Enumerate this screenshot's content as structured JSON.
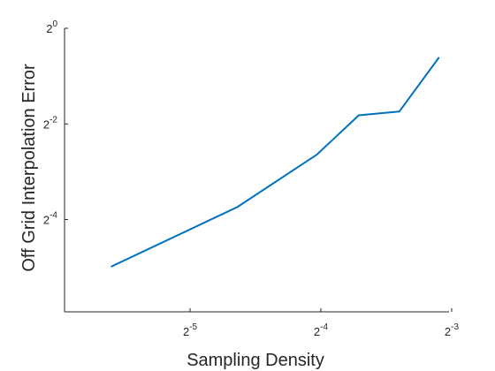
{
  "chart_data": {
    "type": "line",
    "title": "",
    "xlabel": "Sampling Density",
    "ylabel": "Off Grid Interpolation Error",
    "x_scale": "log2",
    "y_scale": "log2",
    "xlim_log2": [
      -5.96,
      -3.02
    ],
    "ylim_log2": [
      -5.93,
      0
    ],
    "x_ticks": [
      {
        "exp": -5,
        "label_base": "2",
        "label_exp": "-5"
      },
      {
        "exp": -4,
        "label_base": "2",
        "label_exp": "-4"
      },
      {
        "exp": -3,
        "label_base": "2",
        "label_exp": "-3"
      }
    ],
    "y_ticks": [
      {
        "exp": 0,
        "label_base": "2",
        "label_exp": "0"
      },
      {
        "exp": -2,
        "label_base": "2",
        "label_exp": "-2"
      },
      {
        "exp": -4,
        "label_base": "2",
        "label_exp": "-4"
      }
    ],
    "grid": false,
    "series": [
      {
        "color": "#0072BD",
        "x_log2": [
          -5.6,
          -4.64,
          -4.03,
          -3.71,
          -3.4,
          -3.1
        ],
        "y_log2": [
          -4.98,
          -3.74,
          -2.64,
          -1.82,
          -1.74,
          -0.62
        ]
      }
    ]
  }
}
